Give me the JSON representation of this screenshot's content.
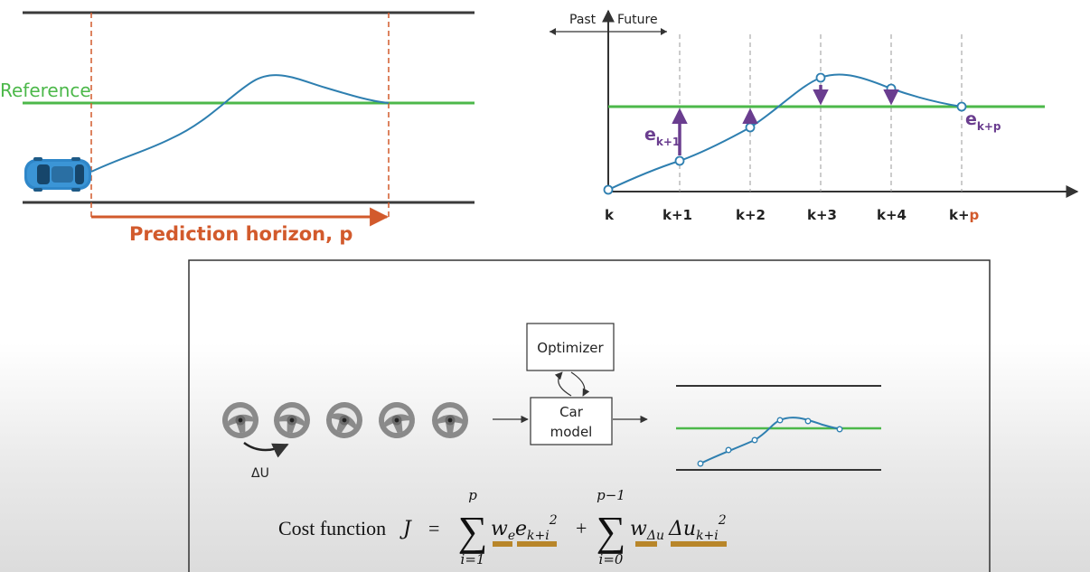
{
  "left_diagram": {
    "reference_label": "Reference",
    "horizon_label": "Prediction horizon, p"
  },
  "right_diagram": {
    "past_label": "Past",
    "future_label": "Future",
    "error_first": {
      "base": "e",
      "sub": "k+1"
    },
    "error_last": {
      "base": "e",
      "sub": "k+p"
    },
    "ticks": [
      {
        "text": "k"
      },
      {
        "text": "k+1"
      },
      {
        "text": "k+2"
      },
      {
        "text": "k+3"
      },
      {
        "text": "k+4"
      },
      {
        "text": "k+",
        "suffix": "p"
      }
    ]
  },
  "bottom_panel": {
    "optimizer_label": "Optimizer",
    "car_model_line1": "Car",
    "car_model_line2": "model",
    "delta_u_label": "ΔU",
    "cost_prefix": "Cost function",
    "cost_J": "J",
    "sum1_upper": "p",
    "sum1_lower": "i=1",
    "sum2_upper": "p−1",
    "sum2_lower": "i=0"
  },
  "colors": {
    "reference": "#4cb84a",
    "trajectory": "#2e7fb0",
    "horizon": "#d25a2c",
    "error_arrow": "#6a3d8f",
    "highlight": "#b8862a",
    "car": "#2f87c9"
  }
}
